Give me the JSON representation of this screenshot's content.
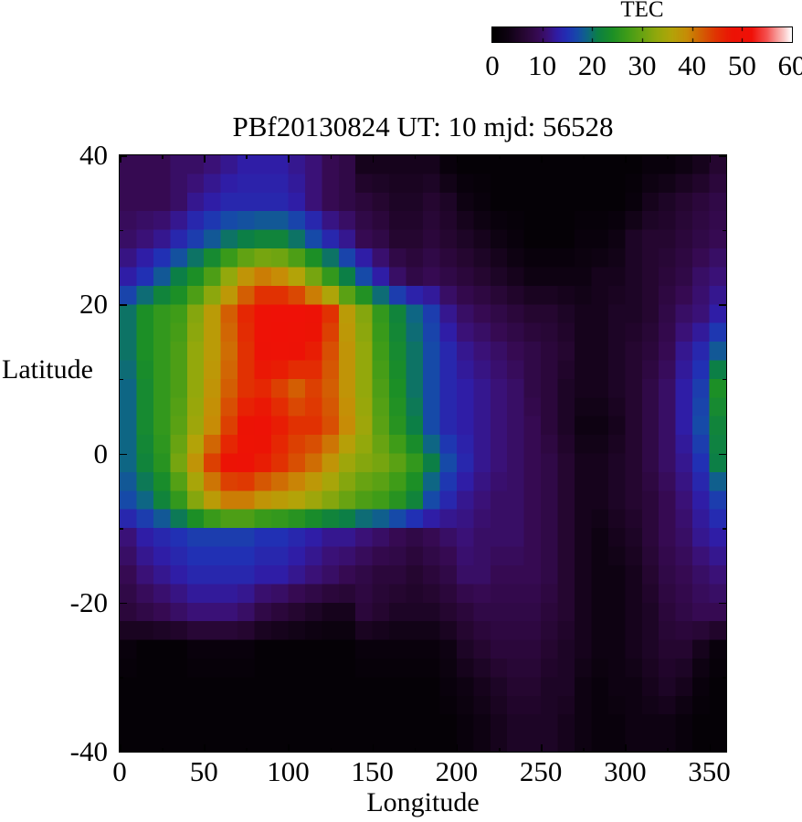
{
  "page": {
    "background": "#ffffff",
    "text_color": "#000000"
  },
  "chart_data": {
    "type": "heatmap",
    "title": "PBf20130824  UT: 10  mjd: 56528",
    "xlabel": "Longitude",
    "ylabel": "Latitude",
    "xlim": [
      0,
      360
    ],
    "ylim": [
      -40,
      40
    ],
    "x_ticks_major": [
      0,
      50,
      100,
      150,
      200,
      250,
      300,
      350
    ],
    "x_tick_minor_step": 25,
    "y_ticks_major": [
      40,
      20,
      0,
      -20,
      -40
    ],
    "y_tick_minor_step": 10,
    "grid_lines": "off",
    "colorbar": {
      "title": "TEC",
      "min": 0,
      "max": 60,
      "ticks": [
        0,
        10,
        20,
        30,
        40,
        50,
        60
      ],
      "position": "top-right-horizontal"
    },
    "palette_stops": [
      [
        0,
        "#000000"
      ],
      [
        3,
        "#0e0212"
      ],
      [
        6,
        "#250630"
      ],
      [
        9,
        "#360a52"
      ],
      [
        11,
        "#3a1177"
      ],
      [
        13,
        "#2f1da6"
      ],
      [
        15,
        "#2130b4"
      ],
      [
        17,
        "#164aa8"
      ],
      [
        19,
        "#0e6684"
      ],
      [
        21,
        "#0c7f46"
      ],
      [
        24,
        "#1c8f26"
      ],
      [
        27,
        "#3f9c18"
      ],
      [
        30,
        "#68a312"
      ],
      [
        33,
        "#93a80c"
      ],
      [
        36,
        "#b3a308"
      ],
      [
        39,
        "#c78c06"
      ],
      [
        42,
        "#d35e03"
      ],
      [
        45,
        "#e13102"
      ],
      [
        48,
        "#ec1305"
      ],
      [
        52,
        "#f01007"
      ],
      [
        55,
        "#f4504f"
      ],
      [
        57,
        "#f79795"
      ],
      [
        58.5,
        "#fbc7c6"
      ],
      [
        60,
        "#ffffff"
      ]
    ],
    "grid": {
      "lon_start": 0,
      "lon_step": 10,
      "cols": 36,
      "lat_top": 40,
      "lat_step": 5,
      "rows": 16,
      "units": "TEC",
      "values": [
        [
          9,
          9,
          9,
          10,
          10,
          11,
          12,
          13,
          13,
          13,
          12,
          11,
          9,
          8,
          4,
          4,
          4,
          4,
          4,
          2,
          1,
          1,
          1,
          1,
          1,
          1,
          1,
          1,
          1,
          1,
          1,
          2,
          2,
          3,
          4,
          6
        ],
        [
          9,
          9,
          9,
          10,
          12,
          13,
          14,
          14,
          14,
          14,
          13,
          11,
          9,
          8,
          7,
          6,
          5,
          5,
          6,
          5,
          3,
          2,
          1,
          1,
          1,
          1,
          1,
          1,
          1,
          1,
          2,
          4,
          5,
          6,
          7,
          8
        ],
        [
          10,
          11,
          12,
          14,
          16,
          18,
          20,
          21,
          22,
          22,
          20,
          17,
          14,
          12,
          9,
          8,
          6,
          6,
          7,
          6,
          5,
          4,
          3,
          2,
          1,
          1,
          1,
          2,
          2,
          3,
          5,
          6,
          6,
          7,
          8,
          9
        ],
        [
          13,
          15,
          18,
          21,
          24,
          28,
          33,
          38,
          40,
          39,
          36,
          31,
          26,
          21,
          17,
          13,
          10,
          8,
          9,
          8,
          7,
          6,
          5,
          4,
          3,
          3,
          3,
          3,
          4,
          4,
          5,
          6,
          7,
          8,
          10,
          11
        ],
        [
          20,
          24,
          26,
          27,
          32,
          37,
          42,
          46,
          50,
          51,
          51,
          49,
          45,
          37,
          32,
          26,
          22,
          19,
          16,
          12,
          10,
          9,
          8,
          7,
          6,
          6,
          5,
          4,
          4,
          5,
          5,
          6,
          8,
          10,
          11,
          13
        ],
        [
          20,
          24,
          26,
          28,
          33,
          37,
          41,
          45,
          49,
          50,
          49,
          47,
          43,
          38,
          33,
          27,
          23,
          20,
          17,
          14,
          12,
          11,
          10,
          9,
          8,
          7,
          6,
          4,
          4,
          5,
          6,
          7,
          9,
          12,
          14,
          18
        ],
        [
          19,
          23,
          26,
          28,
          33,
          38,
          42,
          45,
          46,
          44,
          42,
          44,
          42,
          38,
          33,
          28,
          24,
          20,
          17,
          14,
          13,
          12,
          11,
          10,
          8,
          7,
          5,
          4,
          4,
          5,
          6,
          8,
          10,
          13,
          16,
          24
        ],
        [
          19,
          23,
          26,
          29,
          34,
          39,
          44,
          48,
          49,
          47,
          45,
          45,
          43,
          39,
          34,
          29,
          25,
          21,
          17,
          14,
          13,
          12,
          11,
          10,
          9,
          7,
          5,
          3,
          3,
          4,
          6,
          8,
          10,
          13,
          17,
          22
        ],
        [
          19,
          22,
          25,
          31,
          38,
          44,
          48,
          49,
          47,
          45,
          43,
          41,
          38,
          34,
          32,
          31,
          29,
          26,
          21,
          17,
          14,
          12,
          11,
          10,
          9,
          8,
          6,
          4,
          4,
          5,
          6,
          8,
          10,
          12,
          15,
          21
        ],
        [
          17,
          19,
          22,
          26,
          32,
          37,
          40,
          40,
          38,
          37,
          36,
          34,
          32,
          30,
          28,
          27,
          25,
          22,
          17,
          14,
          12,
          11,
          10,
          10,
          9,
          8,
          6,
          4,
          4,
          5,
          6,
          7,
          9,
          11,
          13,
          16
        ],
        [
          11,
          13,
          14,
          15,
          16,
          16,
          16,
          16,
          15,
          15,
          14,
          13,
          12,
          12,
          11,
          10,
          9,
          8,
          9,
          10,
          11,
          10,
          10,
          10,
          9,
          8,
          6,
          4,
          3,
          4,
          5,
          7,
          9,
          10,
          12,
          13
        ],
        [
          9,
          11,
          12,
          13,
          14,
          14,
          14,
          14,
          13,
          13,
          12,
          11,
          10,
          9,
          8,
          7,
          7,
          6,
          7,
          8,
          10,
          10,
          9,
          9,
          9,
          8,
          6,
          4,
          3,
          3,
          4,
          6,
          8,
          9,
          10,
          11
        ],
        [
          7,
          8,
          9,
          10,
          11,
          11,
          11,
          10,
          8,
          7,
          6,
          5,
          4,
          4,
          7,
          6,
          5,
          5,
          5,
          6,
          7,
          8,
          8,
          8,
          8,
          7,
          6,
          4,
          3,
          3,
          4,
          5,
          7,
          8,
          9,
          9
        ],
        [
          2,
          1,
          1,
          1,
          2,
          2,
          2,
          2,
          1,
          1,
          1,
          1,
          1,
          1,
          2,
          2,
          2,
          2,
          2,
          3,
          5,
          6,
          7,
          7,
          7,
          6,
          5,
          4,
          3,
          3,
          4,
          5,
          6,
          6,
          4,
          2
        ],
        [
          1,
          1,
          1,
          1,
          1,
          1,
          1,
          1,
          1,
          1,
          1,
          1,
          1,
          1,
          1,
          1,
          1,
          1,
          1,
          2,
          3,
          4,
          5,
          6,
          6,
          5,
          5,
          3,
          2,
          3,
          3,
          4,
          5,
          4,
          2,
          1
        ],
        [
          1,
          1,
          1,
          1,
          1,
          1,
          1,
          1,
          1,
          1,
          1,
          1,
          1,
          1,
          1,
          1,
          1,
          1,
          1,
          1,
          2,
          3,
          4,
          5,
          5,
          5,
          4,
          3,
          2,
          2,
          3,
          3,
          3,
          2,
          1,
          1
        ]
      ]
    }
  }
}
